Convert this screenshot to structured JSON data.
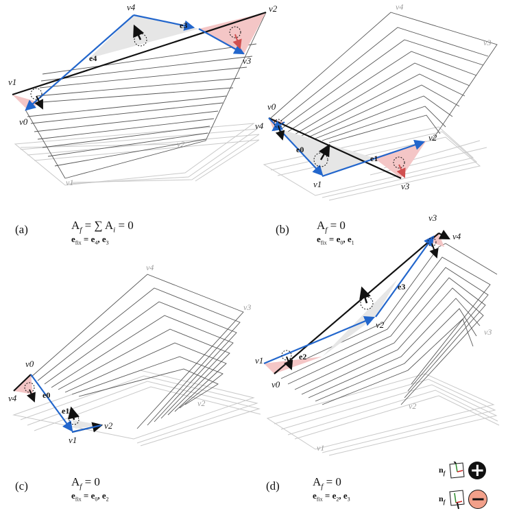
{
  "panels": [
    {
      "id": "a",
      "label": "(a)",
      "eq1": "A",
      "eq1_sub": "f",
      "eq1_rest": " = ∑ A",
      "eq1_sub2": "i",
      "eq1_end": " = 0",
      "eq2_e": "e",
      "eq2_sub": "fix",
      "eq2_rest": "  = e",
      "eq2_s1": "4",
      "eq2_mid": ", e",
      "eq2_s2": "3",
      "vertices": {
        "v4": "v4",
        "v2": "v2",
        "v1": "v1",
        "v0": "v0",
        "v3": "v3"
      },
      "edges": {
        "e3": "e3",
        "e4": "e4"
      },
      "gray_vertices": {
        "v2": "v2",
        "v1": "v1"
      }
    },
    {
      "id": "b",
      "label": "(b)",
      "eq1": "A",
      "eq1_sub": "f",
      "eq1_rest": " = 0",
      "eq2_e": "e",
      "eq2_sub": "fix",
      "eq2_rest": "  = e",
      "eq2_s1": "0",
      "eq2_mid": ", e",
      "eq2_s2": "1",
      "vertices": {
        "v0": "v0",
        "v4": "v4",
        "v2": "v2",
        "v1": "v1",
        "v3": "v3"
      },
      "edges": {
        "e0": "e0",
        "e1": "e1"
      },
      "gray_vertices": {
        "v4": "v4",
        "v3": "v3"
      }
    },
    {
      "id": "c",
      "label": "(c)",
      "eq1": "A",
      "eq1_sub": "f",
      "eq1_rest": " = 0",
      "eq2_e": "e",
      "eq2_sub": "fix",
      "eq2_rest": "  = e",
      "eq2_s1": "0",
      "eq2_mid": ", e",
      "eq2_s2": "2",
      "vertices": {
        "v0": "v0",
        "v4": "v4",
        "v1": "v1",
        "v2": "v2"
      },
      "edges": {
        "e0": "e0",
        "e1": "e1"
      },
      "gray_vertices": {
        "v4": "v4",
        "v3": "v3",
        "v2": "v2"
      }
    },
    {
      "id": "d",
      "label": "(d)",
      "eq1": "A",
      "eq1_sub": "f",
      "eq1_rest": " = 0",
      "eq2_e": "e",
      "eq2_sub": "fix",
      "eq2_rest": "  = e",
      "eq2_s1": "2",
      "eq2_mid": ", e",
      "eq2_s2": "3",
      "vertices": {
        "v3": "v3",
        "v4": "v4",
        "v1": "v1",
        "v0": "v0",
        "v2": "v2"
      },
      "edges": {
        "e2": "e2",
        "e3": "e3"
      },
      "gray_vertices": {
        "v3": "v3",
        "v2": "v2",
        "v1": "v1"
      }
    }
  ],
  "legend": {
    "label": "n",
    "sub": "f",
    "plus": "+",
    "minus": "−"
  },
  "colors": {
    "blue": "#2266cc",
    "pink": "#f4c6c6",
    "gray_fill": "#e6e6e6",
    "red_arrow": "#d05050",
    "minus_fill": "#f2a08a"
  }
}
